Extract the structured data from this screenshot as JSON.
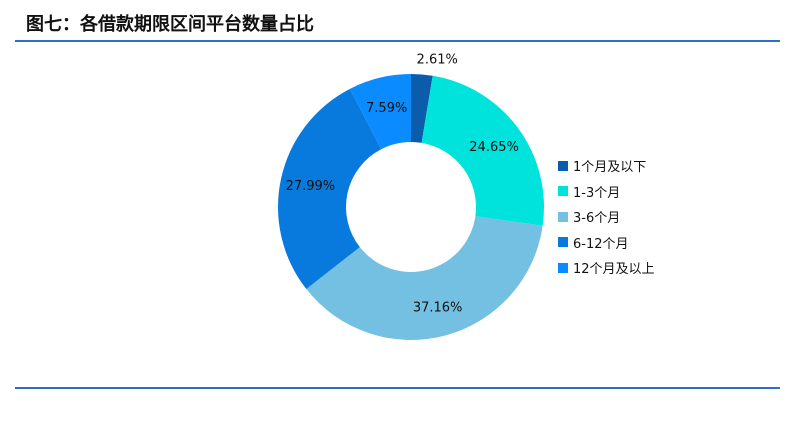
{
  "title": "图七：各借款期限区间平台数量占比",
  "chart_data": {
    "type": "pie",
    "donut": true,
    "title": "图七：各借款期限区间平台数量占比",
    "categories": [
      "1个月及以下",
      "1-3个月",
      "3-6个月",
      "6-12个月",
      "12个月及以上"
    ],
    "values": [
      2.61,
      24.65,
      37.16,
      27.99,
      7.59
    ],
    "labels": [
      "2.61%",
      "24.65%",
      "37.16%",
      "27.99%",
      "7.59%"
    ],
    "colors": [
      "#0b5cab",
      "#00e3dd",
      "#74c0e2",
      "#0879dd",
      "#0a8bff"
    ],
    "legend_position": "right"
  }
}
